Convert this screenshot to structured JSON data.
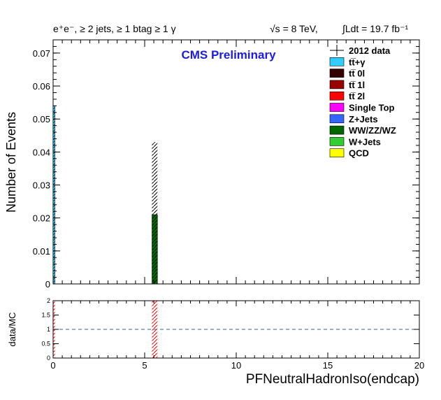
{
  "header": {
    "channel": "e⁺e⁻, ≥ 2 jets, ≥ 1 btag ≥ 1 γ",
    "energy": "√s = 8 TeV,",
    "lumi": "∫Ldt = 19.7 fb⁻¹"
  },
  "chart_data": [
    {
      "type": "bar",
      "stacked": true,
      "title": "CMS Preliminary",
      "xlabel": "PFNeutralHadronIso(endcap)",
      "ylabel": "Number of Events",
      "xlim": [
        0,
        20
      ],
      "ylim": [
        0,
        0.074
      ],
      "x_ticks": [
        0,
        5,
        10,
        15,
        20
      ],
      "y_ticks": [
        0,
        0.01,
        0.02,
        0.03,
        0.04,
        0.05,
        0.06,
        0.07
      ],
      "y_tick_labels": [
        "0",
        "0.01",
        "0.02",
        "0.03",
        "0.04",
        "0.05",
        "0.06",
        "0.07"
      ],
      "legend_position": "top-right",
      "bins": [
        {
          "x_low": 0.0,
          "x_high": 0.1,
          "series": "tt̅+γ",
          "value": 0.054,
          "uncertainty_low": 0.0,
          "uncertainty_high": 0.054
        },
        {
          "x_low": 5.4,
          "x_high": 5.7,
          "series": "WW/ZZ/WZ",
          "value": 0.021,
          "uncertainty_low": 0.021,
          "uncertainty_high": 0.043
        }
      ],
      "series": [
        {
          "name": "2012 data",
          "kind": "data-marker",
          "color": "#000000"
        },
        {
          "name": "tt̅+γ",
          "color": "#33ccff"
        },
        {
          "name": "tt̅ 0l",
          "color": "#330000"
        },
        {
          "name": "tt̅ 1l",
          "color": "#990000"
        },
        {
          "name": "tt̅ 2l",
          "color": "#ff0000"
        },
        {
          "name": "Single Top",
          "color": "#ff00ff"
        },
        {
          "name": "Z+Jets",
          "color": "#3366ff"
        },
        {
          "name": "WW/ZZ/WZ",
          "color": "#006600"
        },
        {
          "name": "W+Jets",
          "color": "#33cc33"
        },
        {
          "name": "QCD",
          "color": "#ffff00"
        }
      ]
    },
    {
      "type": "bar",
      "ylabel": "data/MC",
      "xlim": [
        0,
        20
      ],
      "ylim": [
        0,
        2
      ],
      "x_ticks": [
        0,
        5,
        10,
        15,
        20
      ],
      "x_tick_labels": [
        "0",
        "5",
        "10",
        "15",
        "20"
      ],
      "y_ticks": [
        0,
        0.5,
        1,
        1.5,
        2
      ],
      "y_tick_labels": [
        "0",
        "0.5",
        "1",
        "1.5",
        "2"
      ],
      "reference_line": 1,
      "uncertainty_bands": [
        {
          "x_low": 0.0,
          "x_high": 0.1,
          "y_low": 0,
          "y_high": 2,
          "color": "#ff0000"
        },
        {
          "x_low": 5.4,
          "x_high": 5.7,
          "y_low": 0,
          "y_high": 2,
          "color": "#ff0000"
        }
      ]
    }
  ]
}
